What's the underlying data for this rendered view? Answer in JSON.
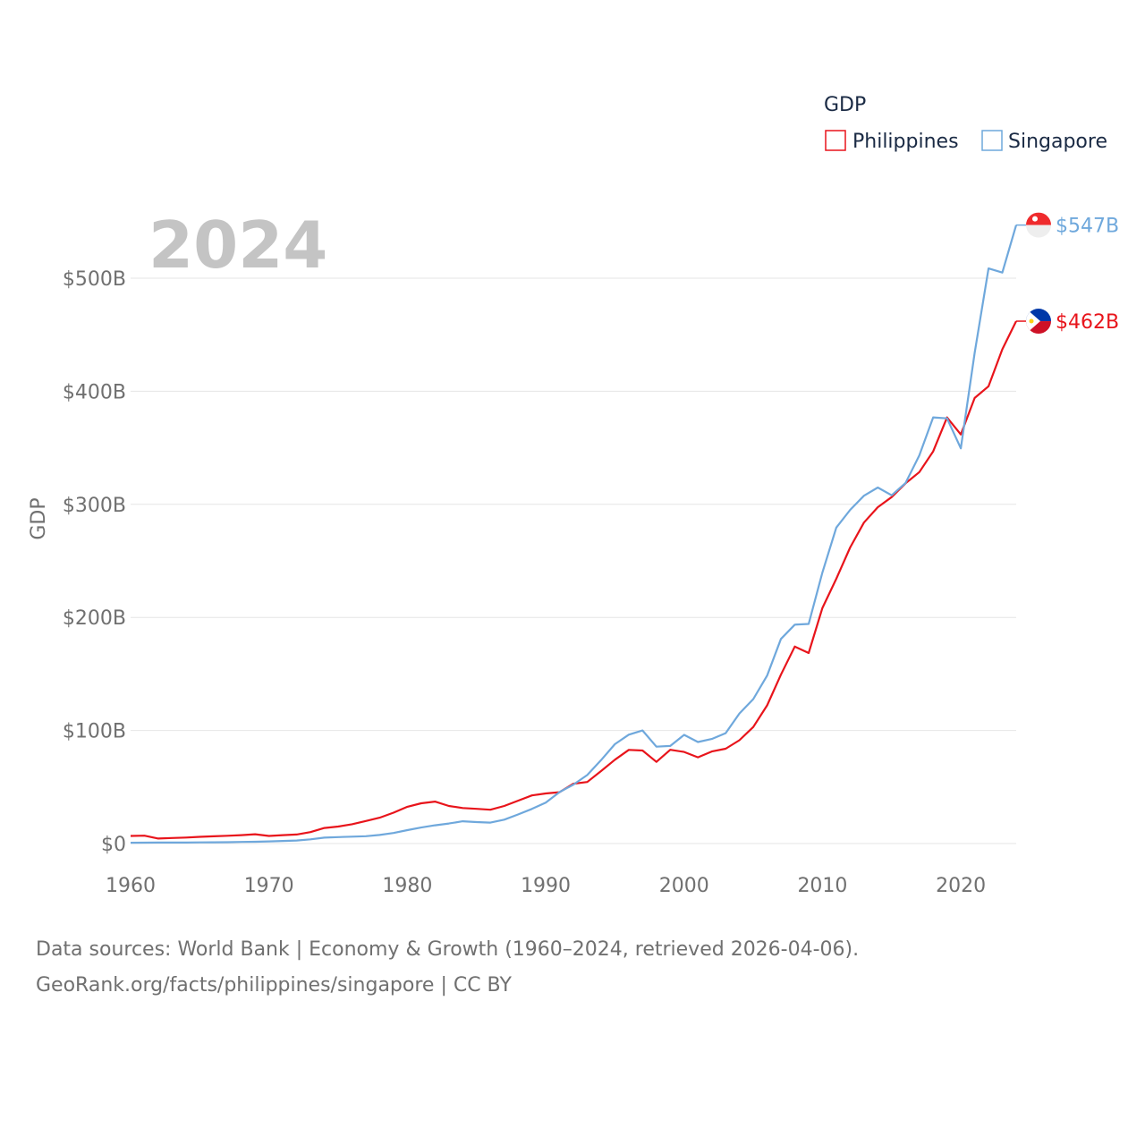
{
  "chart_data": {
    "type": "line",
    "title": "",
    "highlight_year": "2024",
    "xlabel": "",
    "ylabel": "GDP",
    "xlim": [
      1960,
      2024
    ],
    "ylim": [
      0,
      547
    ],
    "x_ticks": [
      1960,
      1970,
      1980,
      1990,
      2000,
      2010,
      2020
    ],
    "x_tick_labels": [
      "1960",
      "1970",
      "1980",
      "1990",
      "2000",
      "2010",
      "2020"
    ],
    "y_ticks": [
      0,
      100,
      200,
      300,
      400,
      500
    ],
    "y_tick_labels": [
      "$0",
      "$100B",
      "$200B",
      "$300B",
      "$400B",
      "$500B"
    ],
    "legend": {
      "title": "GDP",
      "position": "top-right",
      "entries": [
        {
          "name": "Philippines",
          "color": "#e8141b"
        },
        {
          "name": "Singapore",
          "color": "#6fa8dc"
        }
      ]
    },
    "x": [
      1960,
      1961,
      1962,
      1963,
      1964,
      1965,
      1966,
      1967,
      1968,
      1969,
      1970,
      1971,
      1972,
      1973,
      1974,
      1975,
      1976,
      1977,
      1978,
      1979,
      1980,
      1981,
      1982,
      1983,
      1984,
      1985,
      1986,
      1987,
      1988,
      1989,
      1990,
      1991,
      1992,
      1993,
      1994,
      1995,
      1996,
      1997,
      1998,
      1999,
      2000,
      2001,
      2002,
      2003,
      2004,
      2005,
      2006,
      2007,
      2008,
      2009,
      2010,
      2011,
      2012,
      2013,
      2014,
      2015,
      2016,
      2017,
      2018,
      2019,
      2020,
      2021,
      2022,
      2023,
      2024
    ],
    "series": [
      {
        "name": "Philippines",
        "color": "#e8141b",
        "end_label": "$462B",
        "flag": "philippines-flag",
        "values": [
          6.7,
          7.0,
          4.4,
          4.9,
          5.3,
          5.9,
          6.4,
          6.9,
          7.4,
          8.2,
          6.7,
          7.4,
          8.0,
          10.1,
          13.8,
          15.0,
          17.1,
          19.9,
          22.9,
          27.3,
          32.5,
          35.6,
          37.1,
          33.2,
          31.4,
          30.7,
          29.9,
          33.2,
          37.9,
          42.6,
          44.3,
          45.4,
          52.9,
          54.4,
          64.1,
          74.1,
          82.8,
          82.3,
          72.2,
          82.9,
          81.0,
          76.3,
          81.4,
          83.9,
          91.4,
          103.1,
          122.2,
          149.4,
          174.2,
          168.5,
          208.4,
          234.2,
          261.9,
          283.9,
          297.5,
          306.4,
          318.6,
          328.5,
          346.8,
          376.8,
          361.8,
          394.1,
          404.4,
          437.1,
          462.0
        ]
      },
      {
        "name": "Singapore",
        "color": "#6fa8dc",
        "end_label": "$547B",
        "flag": "singapore-flag",
        "values": [
          0.7,
          0.8,
          0.9,
          0.9,
          0.9,
          1.0,
          1.1,
          1.2,
          1.4,
          1.6,
          1.9,
          2.3,
          2.7,
          3.7,
          5.2,
          5.7,
          6.1,
          6.5,
          7.6,
          9.3,
          11.9,
          14.2,
          16.1,
          17.7,
          19.7,
          19.0,
          18.5,
          21.1,
          25.7,
          30.6,
          36.2,
          45.5,
          52.1,
          60.6,
          73.7,
          87.9,
          96.3,
          100.0,
          85.7,
          86.3,
          96.1,
          89.8,
          92.5,
          97.6,
          115.0,
          127.8,
          148.6,
          180.9,
          193.6,
          194.2,
          239.8,
          279.4,
          295.1,
          307.6,
          314.9,
          308.0,
          318.8,
          343.3,
          376.9,
          376.0,
          349.5,
          434.1,
          508.6,
          505.0,
          547.0
        ]
      }
    ]
  },
  "source": {
    "line1": "Data sources: World Bank | Economy & Growth (1960–2024, retrieved 2026-04-06).",
    "line2": "GeoRank.org/facts/philippines/singapore | CC BY"
  }
}
